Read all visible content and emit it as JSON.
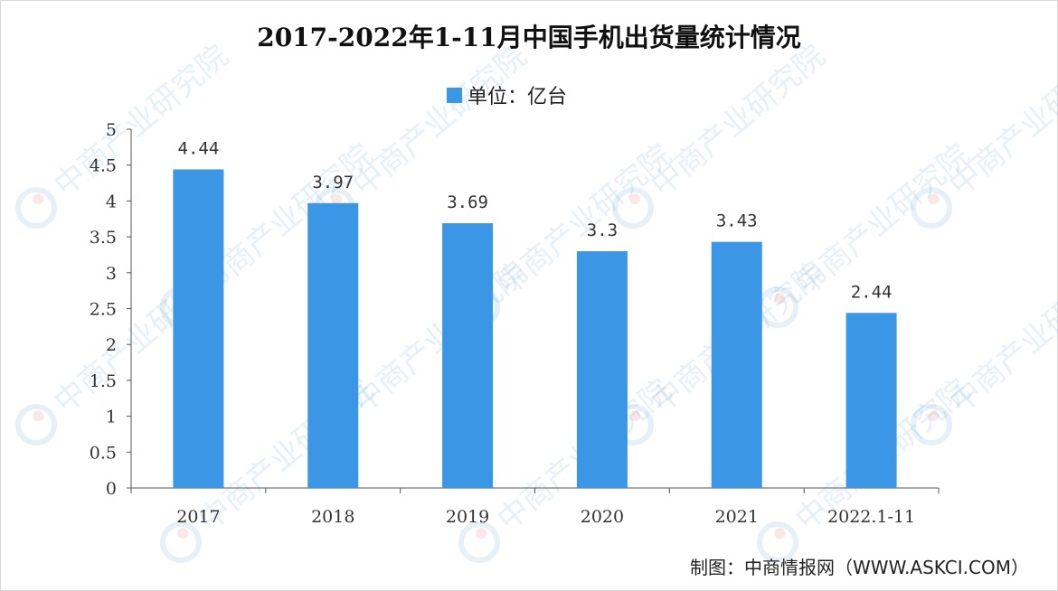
{
  "chart_data": {
    "type": "bar",
    "title": "2017-2022年1-11月中国手机出货量统计情况",
    "legend": "单位：亿台",
    "categories": [
      "2017",
      "2018",
      "2019",
      "2020",
      "2021",
      "2022.1-11"
    ],
    "values": [
      4.44,
      3.97,
      3.69,
      3.3,
      3.43,
      2.44
    ],
    "value_labels": [
      "4.44",
      "3.97",
      "3.69",
      "3.3",
      "3.43",
      "2.44"
    ],
    "yticks": [
      "0",
      "0.5",
      "1",
      "1.5",
      "2",
      "2.5",
      "3",
      "3.5",
      "4",
      "4.5",
      "5"
    ],
    "ylim": [
      0,
      5
    ],
    "xlabel": "",
    "ylabel": "",
    "grid": false,
    "legend_position": "top-center",
    "bar_color": "#3b96e6"
  },
  "source": "制图：中商情报网（WWW.ASKCI.COM）",
  "watermark": {
    "text": "中商产业研究院"
  }
}
